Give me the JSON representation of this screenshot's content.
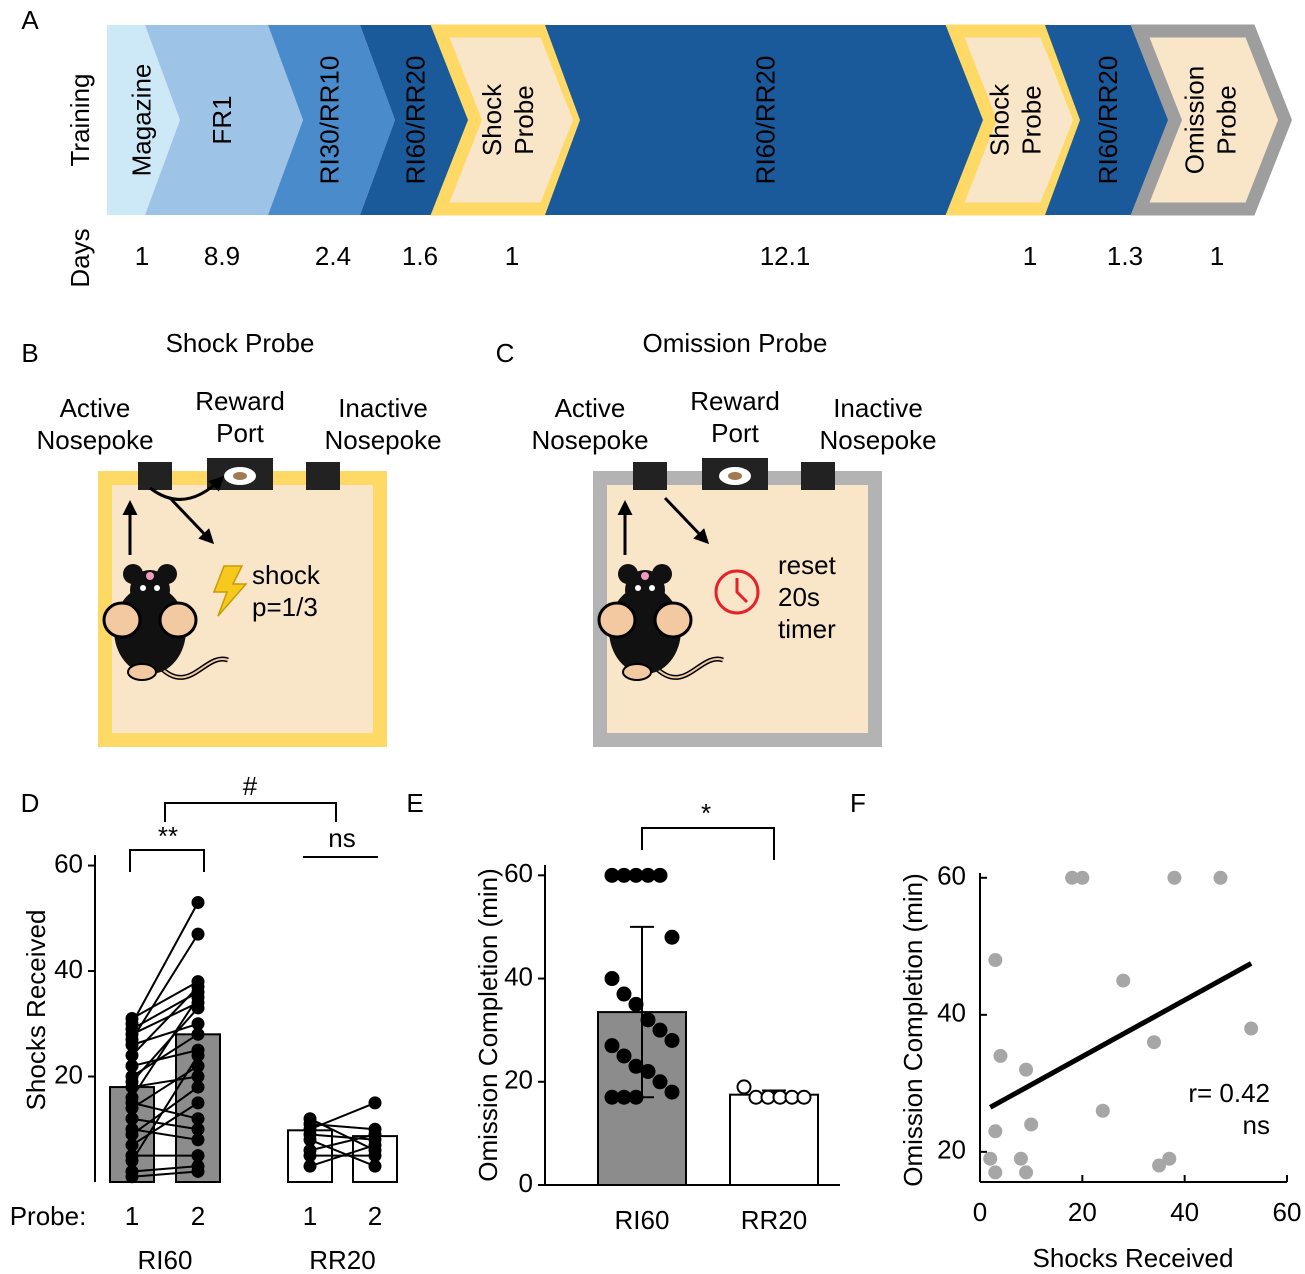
{
  "panel_labels": [
    "A",
    "B",
    "C",
    "D",
    "E",
    "F"
  ],
  "timeline": {
    "row_labels": [
      "Training",
      "Days"
    ],
    "segments": [
      {
        "label": [
          "Magazine"
        ],
        "days": 1,
        "color": "#cde9f7",
        "text_color": "#000000"
      },
      {
        "label": [
          "FR1"
        ],
        "days": 8.9,
        "color": "#9dc3e6",
        "text_color": "#000000"
      },
      {
        "label": [
          "RI30/RR10"
        ],
        "days": 2.4,
        "color": "#4a8ccb",
        "text_color": "#000000"
      },
      {
        "label": [
          "RI60/RR20"
        ],
        "days": 1.6,
        "color": "#1a5a9b",
        "text_color": "#ffffff"
      },
      {
        "label": [
          "Shock",
          "Probe"
        ],
        "days": 1,
        "color": "#f9e5c8",
        "border": "#ffd966",
        "text_color": "#000000"
      },
      {
        "label": [
          "RI60/RR20"
        ],
        "days": 12.1,
        "color": "#1a5a9b",
        "text_color": "#ffffff"
      },
      {
        "label": [
          "Shock",
          "Probe"
        ],
        "days": 1,
        "color": "#f9e5c8",
        "border": "#ffd966",
        "text_color": "#000000"
      },
      {
        "label": [
          "RI60/RR20"
        ],
        "days": 1.3,
        "color": "#1a5a9b",
        "text_color": "#ffffff"
      },
      {
        "label": [
          "Omission",
          "Probe"
        ],
        "days": 1,
        "color": "#f9e5c8",
        "border": "#9e9e9e",
        "text_color": "#000000"
      }
    ]
  },
  "shock_probe": {
    "title": "Shock Probe",
    "color": "#ffd966",
    "active": [
      "Active",
      "Nosepoke"
    ],
    "reward": [
      "Reward",
      "Port"
    ],
    "inactive": [
      "Inactive",
      "Nosepoke"
    ],
    "note": [
      "shock",
      "p=1/3"
    ]
  },
  "omission_probe": {
    "title": "Omission Probe",
    "color": "#b3b3b3",
    "active": [
      "Active",
      "Nosepoke"
    ],
    "reward": [
      "Reward",
      "Port"
    ],
    "inactive": [
      "Inactive",
      "Nosepoke"
    ],
    "note": [
      "reset",
      "20s",
      "timer"
    ]
  },
  "chart_data": [
    {
      "type": "paired-bar",
      "ylabel": "Shocks Received",
      "xlabel": "Probe:",
      "probes": [
        "1",
        "2"
      ],
      "groups": [
        {
          "name": "RI60",
          "color": "#8c8c8c",
          "means": [
            18,
            28
          ],
          "probe1": [
            31,
            30,
            29,
            28,
            27,
            26,
            24,
            22,
            20,
            19,
            18,
            16,
            15,
            14,
            12,
            10,
            9,
            7,
            5,
            4,
            2,
            1
          ],
          "probe2": [
            38,
            53,
            36,
            34,
            47,
            30,
            37,
            25,
            28,
            33,
            20,
            35,
            12,
            22,
            10,
            8,
            18,
            15,
            5,
            24,
            3,
            2
          ]
        },
        {
          "name": "RR20",
          "color": "#ffffff",
          "means": [
            9.8,
            8.7
          ],
          "probe1": [
            12,
            11,
            10,
            9,
            8,
            6,
            5,
            3
          ],
          "probe2": [
            6,
            10,
            15,
            8,
            3,
            9,
            5,
            7
          ]
        }
      ],
      "ylim": [
        0,
        62
      ],
      "yticks": [
        20,
        40,
        60
      ],
      "annotations": [
        "**",
        "ns",
        "#"
      ]
    },
    {
      "type": "bar",
      "ylabel": "Omission Completion (min)",
      "categories": [
        "RI60",
        "RR20"
      ],
      "values": [
        33.5,
        17.5
      ],
      "errors": [
        16.5,
        0.8
      ],
      "colors": [
        "#8c8c8c",
        "#ffffff"
      ],
      "point_colors": [
        "#000000",
        "#ffffff"
      ],
      "points": [
        [
          60,
          60,
          60,
          60,
          60,
          48,
          40,
          37,
          35,
          32,
          30,
          28,
          27,
          25,
          23,
          22,
          20,
          18,
          17,
          17,
          17
        ],
        [
          19,
          17,
          17,
          17,
          17,
          17
        ]
      ],
      "ylim": [
        0,
        62
      ],
      "yticks": [
        0,
        20,
        40,
        60
      ],
      "annotation": "*"
    },
    {
      "type": "scatter",
      "xlabel": "Shocks Received",
      "ylabel": "Omission Completion (min)",
      "color": "#a6a6a6",
      "x": [
        2,
        3,
        3,
        3,
        4,
        8,
        9,
        9,
        10,
        18,
        20,
        24,
        28,
        34,
        35,
        37,
        38,
        47,
        53
      ],
      "y": [
        19,
        17,
        23,
        48,
        34,
        19,
        17,
        32,
        24,
        60,
        60,
        26,
        45,
        36,
        18,
        19,
        60,
        60,
        38
      ],
      "fit": {
        "x": [
          2,
          53
        ],
        "y": [
          26.5,
          47.5
        ]
      },
      "xlim": [
        0,
        60
      ],
      "ylim": [
        15.6,
        60.7
      ],
      "xticks": [
        0,
        20,
        40,
        60
      ],
      "yticks": [
        20,
        40,
        60
      ],
      "annotations": [
        "r= 0.42",
        "ns"
      ]
    }
  ]
}
